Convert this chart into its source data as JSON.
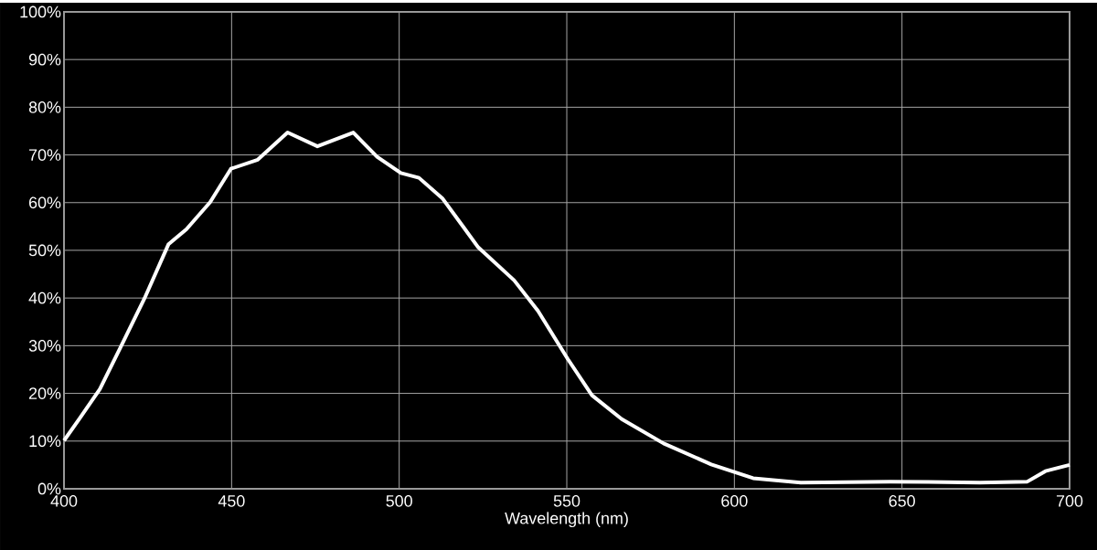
{
  "chart_data": {
    "type": "line",
    "xlabel": "Wavelength (nm)",
    "x": [
      400,
      404.4,
      410.7,
      416.9,
      424,
      431.2,
      436.5,
      443.6,
      449.8,
      457.8,
      466.7,
      475.6,
      486.3,
      493.4,
      500.5,
      505.9,
      513,
      523.6,
      534.3,
      541.4,
      550.3,
      557.5,
      566.4,
      578.9,
      593.1,
      605.6,
      619.8,
      646.5,
      673.2,
      687.4,
      692.8,
      700
    ],
    "series": [
      {
        "color": "#ffffff",
        "values": [
          10.1,
          14.5,
          20.9,
          29.7,
          39.9,
          51.3,
          54.4,
          60.1,
          67.1,
          69.0,
          74.7,
          71.8,
          74.7,
          69.6,
          66.2,
          65.2,
          60.8,
          50.6,
          43.7,
          37.3,
          27.2,
          19.6,
          14.6,
          9.5,
          5.1,
          2.2,
          1.3,
          1.5,
          1.3,
          1.5,
          3.7,
          5
        ]
      }
    ],
    "xlim": [
      400,
      700
    ],
    "xticks": [
      400,
      450,
      500,
      550,
      600,
      650,
      700
    ],
    "ylim": [
      0,
      100
    ],
    "yticks": [
      {
        "value": 0,
        "label": "0%"
      },
      {
        "value": 10,
        "label": "10%"
      },
      {
        "value": 20,
        "label": "20%"
      },
      {
        "value": 30,
        "label": "30%"
      },
      {
        "value": 40,
        "label": "40%"
      },
      {
        "value": 50,
        "label": "50%"
      },
      {
        "value": 60,
        "label": "60%"
      },
      {
        "value": 70,
        "label": "70%"
      },
      {
        "value": 80,
        "label": "80%"
      },
      {
        "value": 90,
        "label": "90%"
      },
      {
        "value": 100,
        "label": "100%"
      }
    ],
    "grid": true,
    "marker": "none",
    "line_style": "solid"
  }
}
